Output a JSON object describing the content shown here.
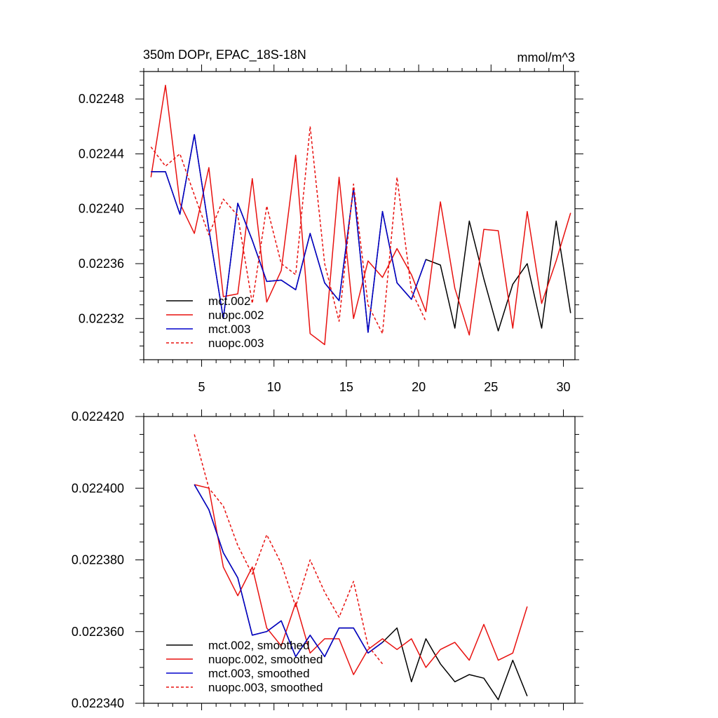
{
  "colors": {
    "mct002": "#000000",
    "nuopc": "#e8110f",
    "mct003": "#0000cc",
    "frame": "#000000"
  },
  "chart_data": [
    {
      "type": "line",
      "title": "350m DOPr, EPAC_18S-18N",
      "units": "mmol/m^3",
      "xlabel": "",
      "ylabel": "",
      "xlim": [
        1.0,
        30.8
      ],
      "ylim": [
        0.02229,
        0.0225
      ],
      "xticks": [
        5,
        10,
        15,
        20,
        25,
        30
      ],
      "xtick_labels": [
        "5",
        "10",
        "15",
        "20",
        "25",
        "30"
      ],
      "yticks": [
        0.02232,
        0.02236,
        0.0224,
        0.02244,
        0.02248
      ],
      "ytick_labels": [
        "0.02232",
        "0.02236",
        "0.02240",
        "0.02244",
        "0.02248"
      ],
      "legend_position": "bottom-left",
      "series": [
        {
          "name": "mct.002",
          "color": "#000000",
          "dash": "solid",
          "x": [
            1.5,
            2.5,
            3.5,
            4.5,
            5.5,
            6.5,
            7.5,
            8.5,
            9.5,
            10.5,
            11.5,
            12.5,
            13.5,
            14.5,
            15.5,
            16.5,
            17.5,
            18.5,
            19.5,
            20.5,
            21.5,
            22.5,
            23.5,
            24.5,
            25.5,
            26.5,
            27.5,
            28.5,
            29.5,
            30.5
          ],
          "y": [
            0.022427,
            0.022427,
            0.022396,
            0.022454,
            0.022385,
            0.02232,
            0.022404,
            0.022377,
            0.022347,
            0.022348,
            0.022341,
            0.022382,
            0.022346,
            0.022333,
            0.022415,
            0.02231,
            0.022398,
            0.022346,
            0.022334,
            0.022363,
            0.022359,
            0.022313,
            0.022391,
            0.022349,
            0.022311,
            0.022345,
            0.02236,
            0.022313,
            0.022391,
            0.022324
          ]
        },
        {
          "name": "nuopc.002",
          "color": "#e8110f",
          "dash": "solid",
          "x": [
            1.5,
            2.5,
            3.5,
            4.5,
            5.5,
            6.5,
            7.5,
            8.5,
            9.5,
            10.5,
            11.5,
            12.5,
            13.5,
            14.5,
            15.5,
            16.5,
            17.5,
            18.5,
            19.5,
            20.5,
            21.5,
            22.5,
            23.5,
            24.5,
            25.5,
            26.5,
            27.5,
            28.5,
            29.5,
            30.5
          ],
          "y": [
            0.022423,
            0.02249,
            0.022404,
            0.022382,
            0.02243,
            0.022336,
            0.022338,
            0.022422,
            0.022332,
            0.022355,
            0.022439,
            0.022309,
            0.022301,
            0.022423,
            0.02232,
            0.022362,
            0.02235,
            0.022371,
            0.022352,
            0.022325,
            0.022405,
            0.022342,
            0.022308,
            0.022385,
            0.022384,
            0.022313,
            0.022398,
            0.022331,
            0.022362,
            0.022397
          ]
        },
        {
          "name": "mct.003",
          "color": "#0000cc",
          "dash": "solid",
          "x": [
            1.5,
            2.5,
            3.5,
            4.5,
            5.5,
            6.5,
            7.5,
            8.5,
            9.5,
            10.5,
            11.5,
            12.5,
            13.5,
            14.5,
            15.5,
            16.5,
            17.5,
            18.5,
            19.5,
            20.5
          ],
          "y": [
            0.022427,
            0.022427,
            0.022396,
            0.022454,
            0.022385,
            0.02232,
            0.022404,
            0.022377,
            0.022347,
            0.022348,
            0.022341,
            0.022382,
            0.022346,
            0.022333,
            0.022415,
            0.02231,
            0.022398,
            0.022346,
            0.022334,
            0.022363
          ]
        },
        {
          "name": "nuopc.003",
          "color": "#e8110f",
          "dash": "dashed",
          "x": [
            1.5,
            2.5,
            3.5,
            4.5,
            5.5,
            6.5,
            7.5,
            8.5,
            9.5,
            10.5,
            11.5,
            12.5,
            13.5,
            14.5,
            15.5,
            16.5,
            17.5,
            18.5,
            19.5,
            20.5
          ],
          "y": [
            0.022445,
            0.022431,
            0.02244,
            0.02241,
            0.022381,
            0.022407,
            0.022395,
            0.022331,
            0.022402,
            0.02236,
            0.022352,
            0.02246,
            0.02236,
            0.022318,
            0.022418,
            0.02233,
            0.022309,
            0.022423,
            0.02234,
            0.022318
          ]
        }
      ]
    },
    {
      "type": "line",
      "title": "",
      "xlabel": "",
      "ylabel": "",
      "xlim": [
        1.0,
        30.8
      ],
      "ylim": [
        0.02234,
        0.02242
      ],
      "xticks": [
        5,
        10,
        15,
        20,
        25,
        30
      ],
      "xtick_labels": [],
      "yticks": [
        0.02234,
        0.02236,
        0.02238,
        0.0224,
        0.02242
      ],
      "ytick_labels": [
        "0.022340",
        "0.022360",
        "0.022380",
        "0.022400",
        "0.022420"
      ],
      "legend_position": "bottom-left",
      "series": [
        {
          "name": "mct.002, smoothed",
          "color": "#000000",
          "dash": "solid",
          "x": [
            4.5,
            5.5,
            6.5,
            7.5,
            8.5,
            9.5,
            10.5,
            11.5,
            12.5,
            13.5,
            14.5,
            15.5,
            16.5,
            17.5,
            18.5,
            19.5,
            20.5,
            21.5,
            22.5,
            23.5,
            24.5,
            25.5,
            26.5,
            27.5
          ],
          "y": [
            0.022401,
            0.022394,
            0.022382,
            0.022375,
            0.022359,
            0.02236,
            0.022363,
            0.022353,
            0.022359,
            0.022353,
            0.022361,
            0.022361,
            0.022354,
            0.022357,
            0.022361,
            0.022346,
            0.022358,
            0.022351,
            0.022346,
            0.022348,
            0.022347,
            0.022341,
            0.022352,
            0.022342
          ]
        },
        {
          "name": "nuopc.002, smoothed",
          "color": "#e8110f",
          "dash": "solid",
          "x": [
            4.5,
            5.5,
            6.5,
            7.5,
            8.5,
            9.5,
            10.5,
            11.5,
            12.5,
            13.5,
            14.5,
            15.5,
            16.5,
            17.5,
            18.5,
            19.5,
            20.5,
            21.5,
            22.5,
            23.5,
            24.5,
            25.5,
            26.5,
            27.5
          ],
          "y": [
            0.022401,
            0.0224,
            0.022378,
            0.02237,
            0.022378,
            0.022361,
            0.022356,
            0.022368,
            0.022354,
            0.022358,
            0.022358,
            0.022348,
            0.022355,
            0.022358,
            0.022355,
            0.022358,
            0.02235,
            0.022355,
            0.022357,
            0.022352,
            0.022362,
            0.022352,
            0.022354,
            0.022367
          ]
        },
        {
          "name": "mct.003, smoothed",
          "color": "#0000cc",
          "dash": "solid",
          "x": [
            4.5,
            5.5,
            6.5,
            7.5,
            8.5,
            9.5,
            10.5,
            11.5,
            12.5,
            13.5,
            14.5,
            15.5,
            16.5,
            17.5
          ],
          "y": [
            0.022401,
            0.022394,
            0.022382,
            0.022375,
            0.022359,
            0.02236,
            0.022363,
            0.022353,
            0.022359,
            0.022353,
            0.022361,
            0.022361,
            0.022354,
            0.022357
          ]
        },
        {
          "name": "nuopc.003, smoothed",
          "color": "#e8110f",
          "dash": "dashed",
          "x": [
            4.5,
            5.5,
            6.5,
            7.5,
            8.5,
            9.5,
            10.5,
            11.5,
            12.5,
            13.5,
            14.5,
            15.5,
            16.5,
            17.5
          ],
          "y": [
            0.022415,
            0.0224,
            0.022395,
            0.022384,
            0.022376,
            0.022387,
            0.022379,
            0.022367,
            0.02238,
            0.022371,
            0.022364,
            0.022374,
            0.022356,
            0.022351
          ]
        }
      ]
    }
  ]
}
